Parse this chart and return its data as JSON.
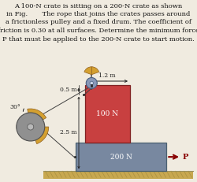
{
  "title_lines": [
    "A 100-N crate is sitting on a 200-N crate as shown",
    "in Fig.       The rope that joins the crates passes around",
    "a frictionless pulley and a fixed drum. The coefficient of",
    "friction is 0.30 at all surfaces. Determine the minimum force",
    "P that must be applied to the 200-N crate to start motion."
  ],
  "bg_color": "#f0ebe0",
  "ground_color": "#c8a850",
  "crate_top_color": "#c84040",
  "crate_top_edge": "#802020",
  "crate_bottom_color": "#7888a0",
  "crate_bottom_edge": "#4a6070",
  "drum_color": "#909090",
  "drum_edge": "#505050",
  "pulley_color": "#8898b8",
  "pulley_edge": "#4a6080",
  "bracket_color": "#d4a030",
  "rope_color": "#404040",
  "arrow_color": "#880000",
  "dim_color": "#202020",
  "label_fontsize": 6.5,
  "dim_fontsize": 5.5,
  "title_fontsize": 6.0
}
